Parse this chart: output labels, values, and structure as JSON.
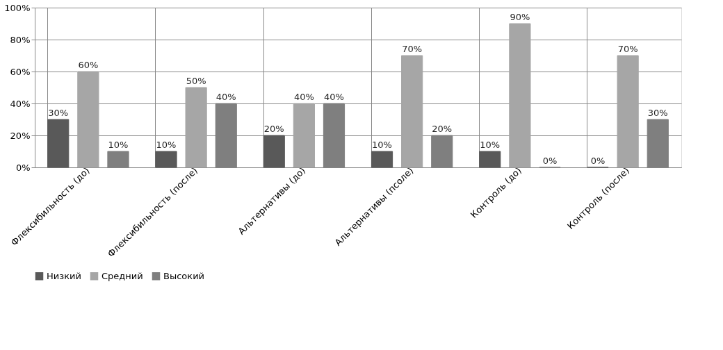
{
  "chart_data": {
    "type": "bar",
    "categories": [
      "Флексибильность (до)",
      "Флексибильность (после)",
      "Альтернативы (до)",
      "Альтернативы (псоле)",
      "Контроль (до)",
      "Контроль (после)"
    ],
    "series": [
      {
        "name": "Низкий",
        "color": "#595959",
        "values": [
          30,
          10,
          20,
          10,
          10,
          0
        ],
        "value_labels": [
          "30%",
          "10%",
          "20%",
          "10%",
          "10%",
          "0%"
        ]
      },
      {
        "name": "Средний",
        "color": "#a6a6a6",
        "values": [
          60,
          50,
          40,
          70,
          90,
          70
        ],
        "value_labels": [
          "60%",
          "50%",
          "40%",
          "70%",
          "90%",
          "70%"
        ]
      },
      {
        "name": "Высокий",
        "color": "#7f7f7f",
        "values": [
          10,
          40,
          40,
          20,
          0,
          30
        ],
        "value_labels": [
          "10%",
          "40%",
          "40%",
          "20%",
          "0%",
          "30%"
        ]
      }
    ],
    "ylim": [
      0,
      100
    ],
    "yticks": [
      {
        "value": 0,
        "label": "0%"
      },
      {
        "value": 20,
        "label": "20%"
      },
      {
        "value": 40,
        "label": "40%"
      },
      {
        "value": 60,
        "label": "60%"
      },
      {
        "value": 80,
        "label": "80%"
      },
      {
        "value": 100,
        "label": "100%"
      }
    ],
    "grid": true,
    "legend": "bottom"
  }
}
